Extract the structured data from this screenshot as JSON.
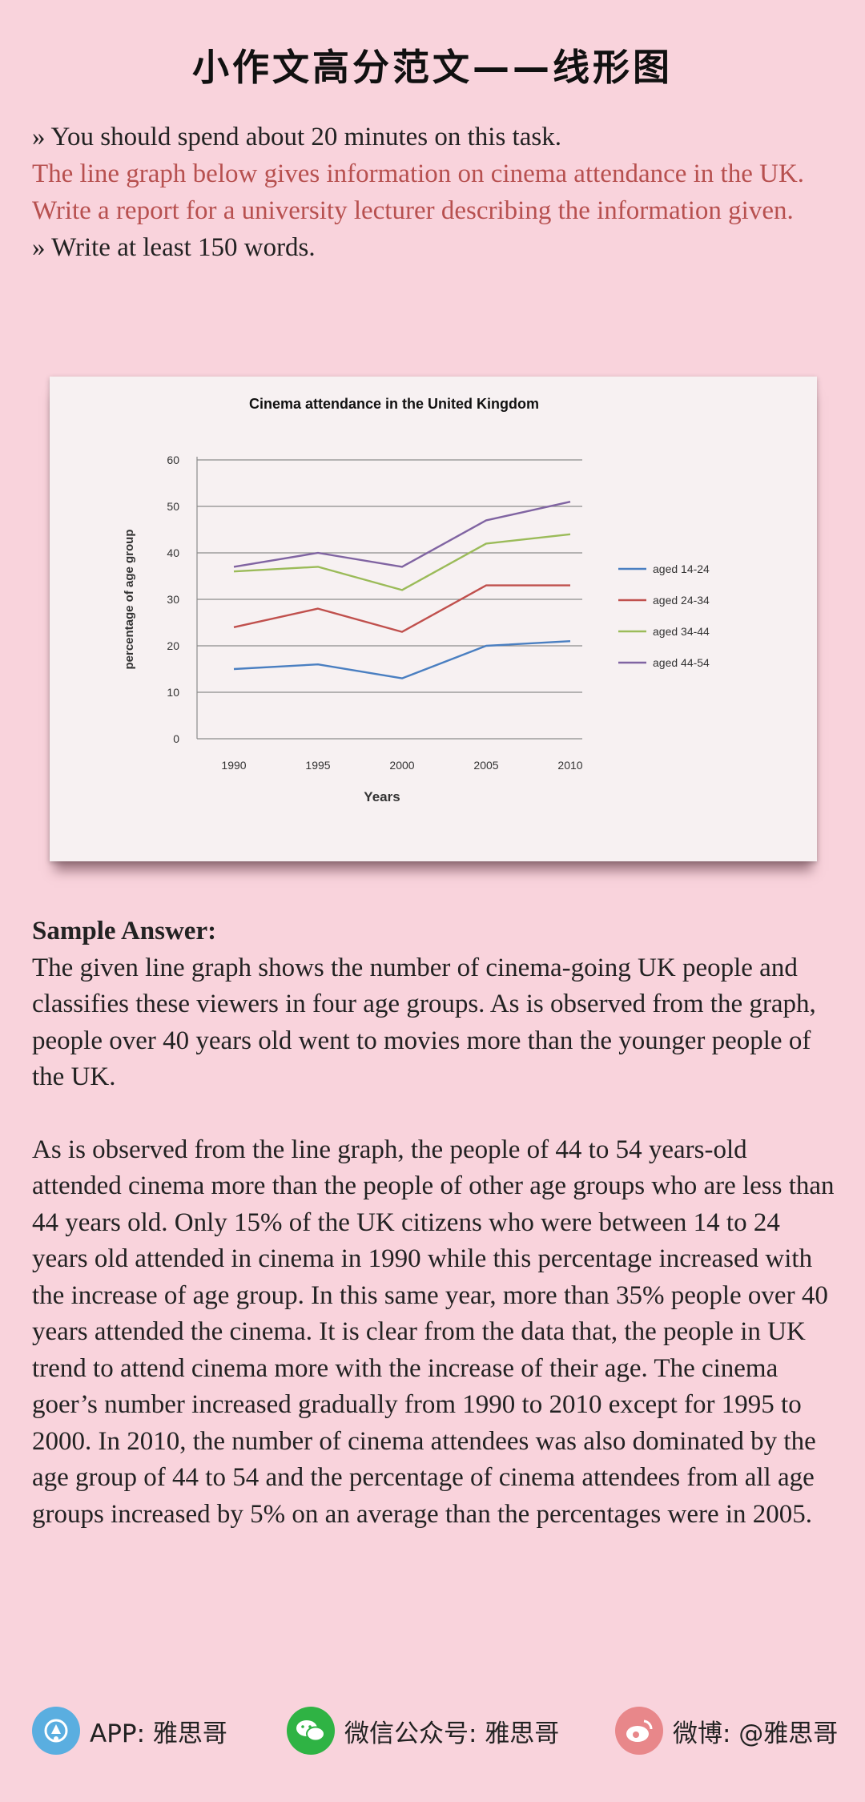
{
  "title": "小作文高分范文——线形图",
  "task": {
    "line1": "» You should spend about 20 minutes on this task.",
    "line2": "The line graph below gives information on cinema attendance in the UK.",
    "line3": "Write a report for a university lecturer describing the information given.",
    "line4": "» Write at least 150 words."
  },
  "chart_data": {
    "type": "line",
    "title": "Cinema attendance in the United Kingdom",
    "xlabel": "Years",
    "ylabel": "percentage of age group",
    "x": [
      "1990",
      "1995",
      "2000",
      "2005",
      "2010"
    ],
    "ylim": [
      0,
      60
    ],
    "yticks": [
      "0",
      "10",
      "20",
      "30",
      "40",
      "50",
      "60"
    ],
    "grid": true,
    "legend_position": "right",
    "series": [
      {
        "name": "aged 14-24",
        "values": [
          15,
          16,
          13,
          20,
          21
        ],
        "color": "#4a7fc1"
      },
      {
        "name": "aged 24-34",
        "values": [
          24,
          28,
          23,
          33,
          33
        ],
        "color": "#c0504d"
      },
      {
        "name": "aged 34-44",
        "values": [
          36,
          37,
          32,
          42,
          44
        ],
        "color": "#9bbb59"
      },
      {
        "name": "aged 44-54",
        "values": [
          37,
          40,
          37,
          47,
          51
        ],
        "color": "#8064a2"
      }
    ]
  },
  "answer": {
    "heading": "Sample Answer:",
    "para1": "The given line graph shows the number of cinema-going UK people and classifies these viewers in four age groups. As is observed from the graph, people over 40 years old went to movies more than the younger people of the UK.",
    "para2": "As is observed from the line graph, the people of 44 to 54 years-old attended cinema more than the people of other age groups who are less than 44 years old. Only 15% of the UK citizens who were between 14 to 24 years old attended in cinema in 1990 while this percentage increased with the increase of age group. In this same year, more than 35% people over 40 years attended the cinema. It is clear from the data that, the people in UK trend to attend cinema more with the increase of their age. The cinema goer’s number increased gradually from 1990 to 2010 except for 1995 to 2000. In 2010, the number of cinema attendees was also dominated by the age group of 44 to 54 and the percentage of cinema attendees from all age groups increased by 5% on an average than the percentages were in 2005."
  },
  "footer": {
    "app": {
      "label": "APP: 雅思哥",
      "icon": "app-icon",
      "color": "#5aaee0"
    },
    "wechat": {
      "label": "微信公众号: 雅思哥",
      "icon": "wechat-icon",
      "color": "#2fb344"
    },
    "weibo": {
      "label": "微博: @雅思哥",
      "icon": "weibo-icon",
      "color": "#e8878a"
    }
  }
}
